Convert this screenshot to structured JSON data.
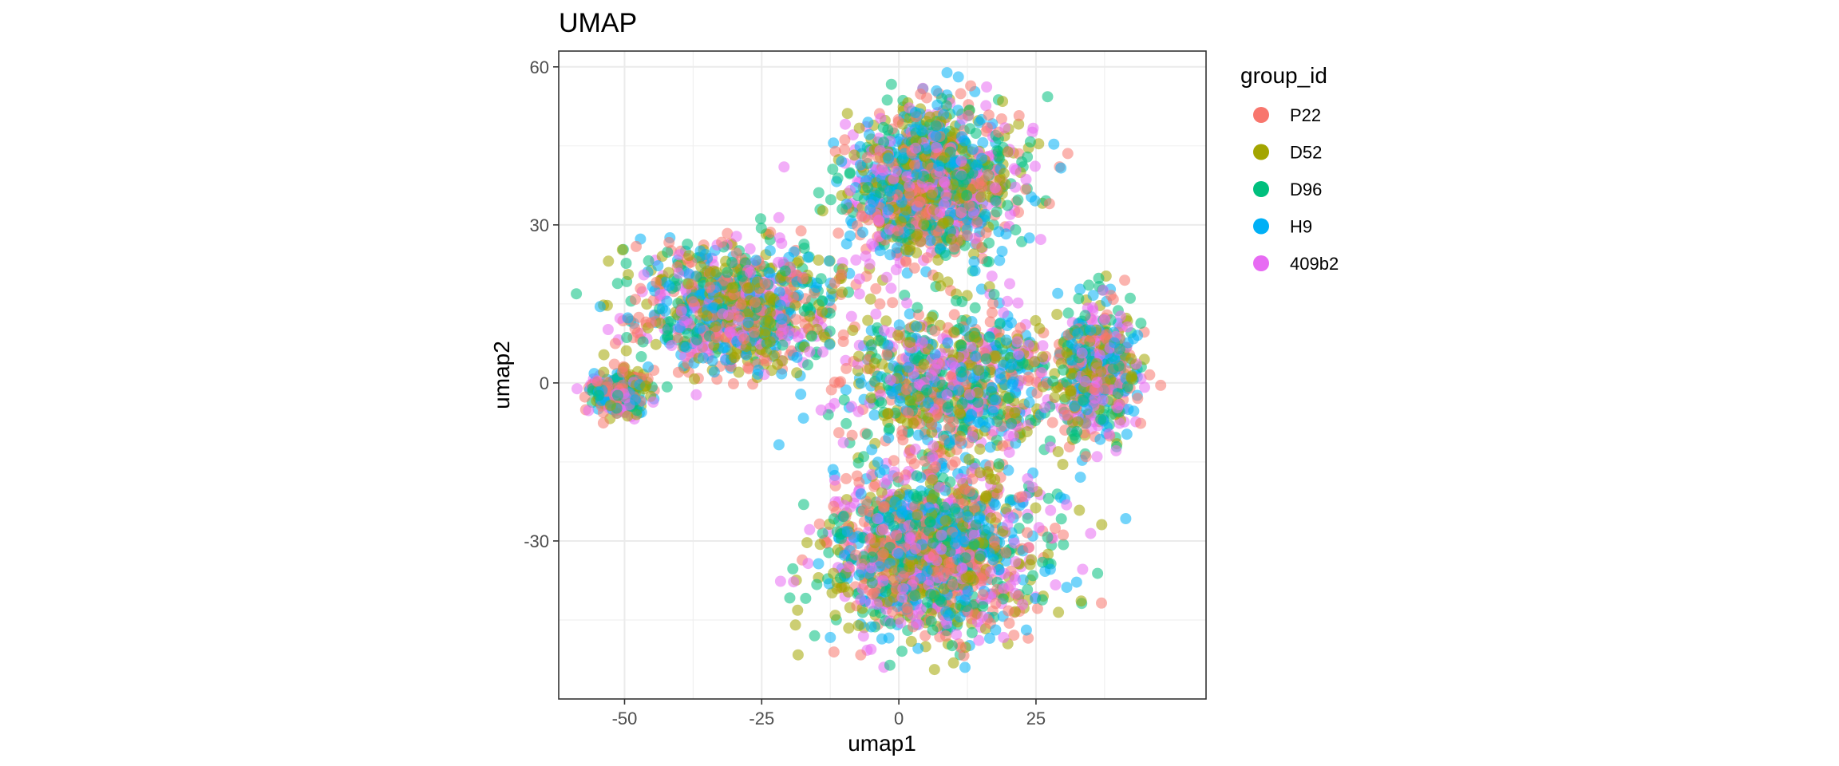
{
  "chart_data": {
    "type": "scatter",
    "title": "UMAP",
    "xlabel": "umap1",
    "ylabel": "umap2",
    "xlim": [
      -62,
      56
    ],
    "ylim": [
      -60,
      63
    ],
    "x_ticks": [
      -50,
      -25,
      0,
      25
    ],
    "x_tick_labels": [
      "-50",
      "-25",
      "0",
      "25"
    ],
    "y_ticks": [
      -30,
      0,
      30,
      60
    ],
    "y_tick_labels": [
      "-30",
      "0",
      "30",
      "60"
    ],
    "grid": true,
    "point_alpha": 0.55,
    "legend": {
      "title": "group_id",
      "position": "right",
      "entries": [
        "P22",
        "D52",
        "D96",
        "H9",
        "409b2"
      ]
    },
    "series": [
      {
        "name": "P22",
        "color": "#F8766D"
      },
      {
        "name": "D52",
        "color": "#A3A500"
      },
      {
        "name": "D96",
        "color": "#00BF7D"
      },
      {
        "name": "H9",
        "color": "#00B0F6"
      },
      {
        "name": "409b2",
        "color": "#E76BF3"
      }
    ],
    "approximate_cluster_regions": [
      {
        "label": "top lobe",
        "center": [
          6,
          38
        ],
        "spread": [
          14,
          13
        ],
        "weight": 0.24
      },
      {
        "label": "upper-left wing",
        "center": [
          -30,
          14
        ],
        "spread": [
          17,
          11
        ],
        "weight": 0.18
      },
      {
        "label": "left tip",
        "center": [
          -51,
          -2
        ],
        "spread": [
          5,
          4
        ],
        "weight": 0.05
      },
      {
        "label": "center body",
        "center": [
          10,
          0
        ],
        "spread": [
          17,
          13
        ],
        "weight": 0.16
      },
      {
        "label": "bottom lobe",
        "center": [
          6,
          -32
        ],
        "spread": [
          17,
          15
        ],
        "weight": 0.28
      },
      {
        "label": "right lobe",
        "center": [
          36,
          2
        ],
        "spread": [
          7,
          12
        ],
        "weight": 0.09
      }
    ]
  }
}
